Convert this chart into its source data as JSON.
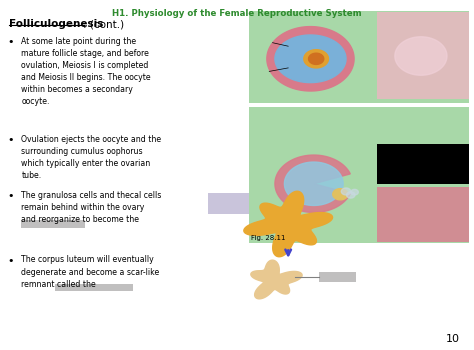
{
  "title": "H1. Physiology of the Female Reproductive System",
  "title_color": "#2e8b2e",
  "heading": "Folliculogenesis",
  "heading_suffix": ": (cont.)",
  "bg_color": "#ffffff",
  "page_number": "10",
  "bullets": [
    "At some late point during the\nmature follicle stage, and before\novulation, Meiosis I is completed\nand Meiosis II begins. The oocyte\nwithin becomes a secondary\noocyte.",
    "Ovulation ejects the oocyte and the\nsurrounding cumulus oophorus\nwhich typically enter the ovarian\ntube.",
    "The granulosa cells and thecal cells\nremain behind within the ovary\nand reorganize to become the",
    "The corpus luteum will eventually\ndegenerate and become a scar-like\nremnant called the"
  ],
  "fig_label": "Fig. 28.11",
  "arrow_color": "#4444cc",
  "top_bg": "#a8d8a8",
  "mid_bg": "#a8d8a8",
  "redact_color": "#c0bfbf",
  "blur_color": "#b8b0d0",
  "follicle_outer": "#d87a8a",
  "follicle_fluid": "#7ab0d8",
  "follicle_oocyte": "#e0a030",
  "corpus_color": "#e8a830",
  "albicans_color": "#e8c890",
  "hist_color": "#e8b8c0",
  "hist2_color": "#000000",
  "hist3_color": "#d88090"
}
